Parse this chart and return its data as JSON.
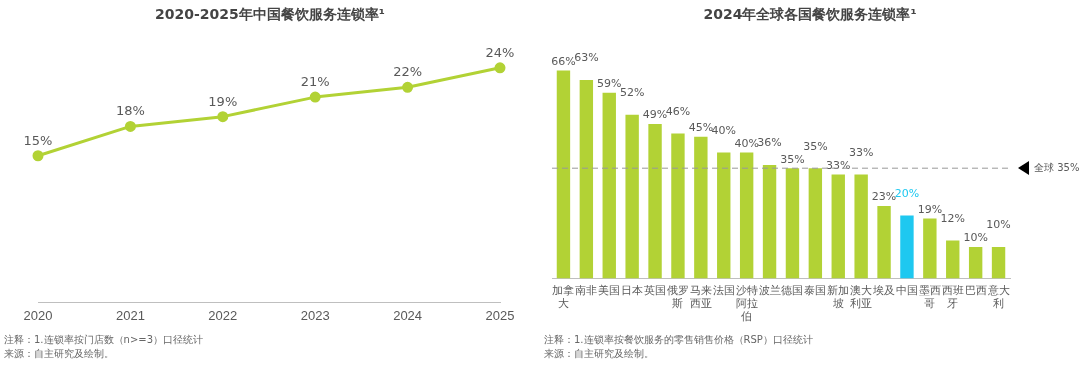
{
  "chart_data": [
    {
      "type": "line",
      "title": "2020-2025年中国餐饮服务连锁率¹",
      "categories": [
        "2020",
        "2021",
        "2022",
        "2023",
        "2024",
        "2025"
      ],
      "series": [
        {
          "color": "#b2d235",
          "values": [
            15,
            18,
            19,
            21,
            22,
            24
          ],
          "value_labels": [
            "15%",
            "18%",
            "19%",
            "21%",
            "22%",
            "24%"
          ]
        }
      ],
      "marker": "circle",
      "grid": false,
      "legend": false,
      "tick_labels": "x",
      "annotations": [
        "注释：1.连锁率按门店数（n>=3）口径统计",
        "来源：自主研究及绘制。"
      ]
    },
    {
      "type": "bar",
      "title": "2024年全球各国餐饮服务连锁率¹",
      "categories": [
        "加拿大",
        "南非",
        "美国",
        "日本",
        "英国",
        "俄罗斯",
        "马来西亚",
        "法国",
        "沙特阿拉伯",
        "波兰",
        "德国",
        "泰国",
        "新加坡",
        "澳大利亚",
        "埃及",
        "中国",
        "墨西哥",
        "西班牙",
        "巴西",
        "意大利"
      ],
      "values": [
        66,
        63,
        59,
        52,
        49,
        46,
        45,
        40,
        40,
        36,
        35,
        35,
        33,
        33,
        23,
        20,
        19,
        12,
        10,
        10
      ],
      "colors": [
        "#b2d235",
        "#b2d235",
        "#b2d235",
        "#b2d235",
        "#b2d235",
        "#b2d235",
        "#b2d235",
        "#b2d235",
        "#b2d235",
        "#b2d235",
        "#b2d235",
        "#b2d235",
        "#b2d235",
        "#b2d235",
        "#b2d235",
        "#1ec8f0",
        "#b2d235",
        "#b2d235",
        "#b2d235",
        "#b2d235"
      ],
      "value_labels": [
        "66%",
        "63%",
        "59%",
        "52%",
        "49%",
        "46%",
        "45%",
        "40%",
        "40%",
        "36%",
        "35%",
        "35%",
        "33%",
        "33%",
        "23%",
        "20%",
        "19%",
        "12%",
        "10%",
        "10%"
      ],
      "relative": false,
      "grid": false,
      "legend": false,
      "tick_labels": "x",
      "ref_lines": [
        {
          "axis": "y",
          "value": 35,
          "label": "全球 35%",
          "color": "#999999",
          "line_style": "dashed"
        }
      ],
      "annotations": [
        "注释：1.连锁率按餐饮服务的零售销售价格（RSP）口径统计",
        "来源：自主研究及绘制。"
      ]
    }
  ]
}
